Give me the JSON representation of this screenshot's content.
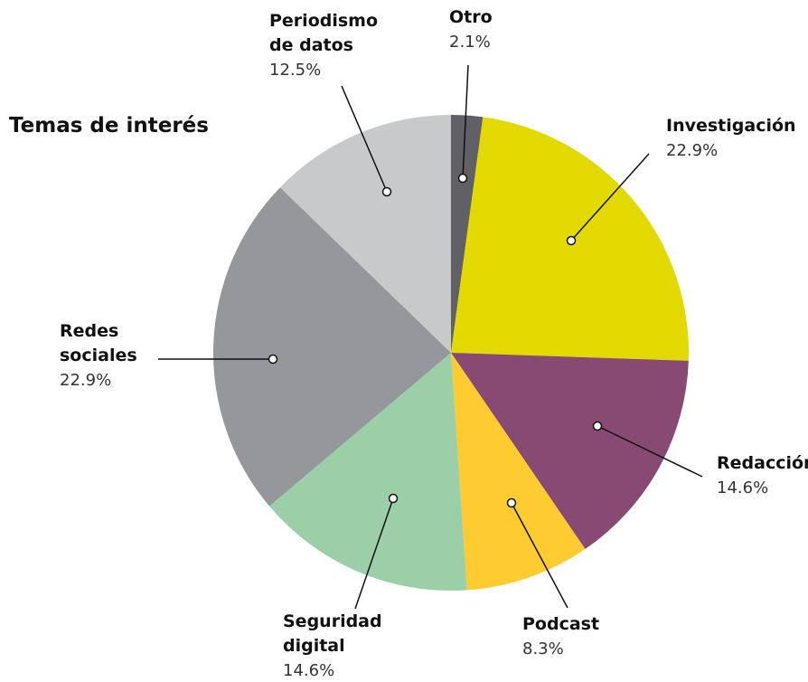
{
  "chart_data": {
    "type": "pie",
    "title": "Temas de interés",
    "categories": [
      "Otro",
      "Investigación",
      "Redacción",
      "Podcast",
      "Seguridad digital",
      "Redes sociales",
      "Periodismo de datos"
    ],
    "values": [
      2.1,
      22.9,
      14.6,
      8.3,
      14.6,
      22.9,
      12.5
    ],
    "value_labels": [
      "2.1%",
      "22.9%",
      "14.6%",
      "8.3%",
      "14.6%",
      "22.9%",
      "12.5%"
    ],
    "colors": [
      "#616064",
      "#e2d900",
      "#864a73",
      "#fecb30",
      "#9acfa7",
      "#96979b",
      "#c8c9cb"
    ]
  }
}
